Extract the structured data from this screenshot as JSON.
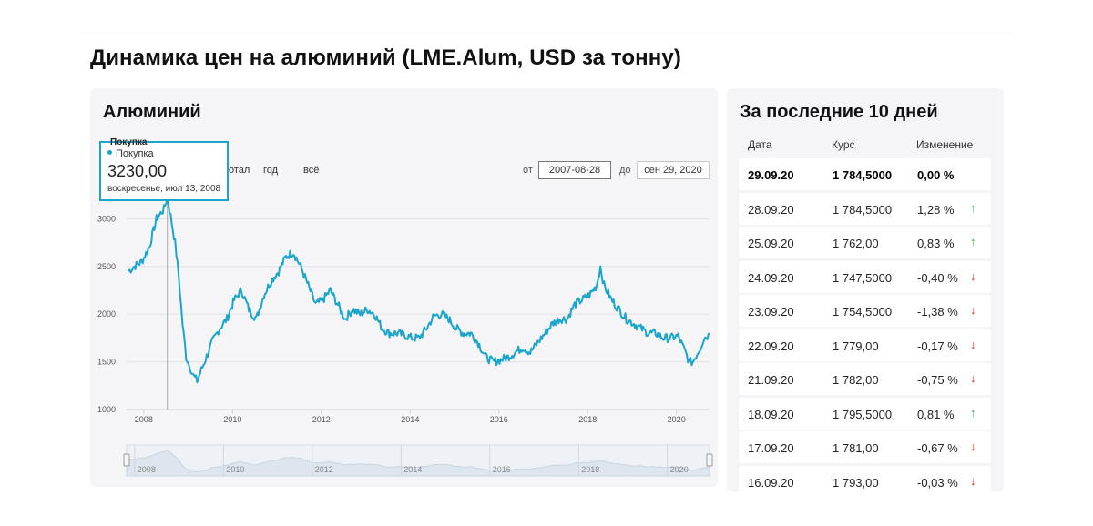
{
  "page_title": "Динамика цен на алюминий (LME.Alum, USD за тонну)",
  "chart_panel": {
    "title": "Алюминий",
    "tooltip": {
      "header": "Покупка",
      "series": "Покупка",
      "value": "3230,00",
      "date": "воскресенье, июл 13, 2008"
    },
    "range_links": [
      "отал",
      "год",
      "всё"
    ],
    "from_label": "от",
    "from_value": "2007-08-28",
    "to_label": "до",
    "to_value": "сен 29, 2020"
  },
  "chart_data": {
    "type": "line",
    "title": "Алюминий",
    "series": [
      {
        "name": "Покупка",
        "color": "#1aa5cc"
      }
    ],
    "ylim": [
      1000,
      3300
    ],
    "yticks": [
      "1000",
      "1500",
      "2000",
      "2500",
      "3000"
    ],
    "xticks": [
      "2008",
      "2010",
      "2012",
      "2014",
      "2016",
      "2018",
      "2020"
    ],
    "navigator_ticks": [
      "2008",
      "2010",
      "2012",
      "2014",
      "2016",
      "2018",
      "2020"
    ],
    "highlight": {
      "x": "2008-07-13",
      "y": 3230
    },
    "x": [
      "2007-08-28",
      "2007-10",
      "2007-12",
      "2008-02",
      "2008-04",
      "2008-06",
      "2008-07-13",
      "2008-09",
      "2008-10",
      "2008-11",
      "2008-12",
      "2009-01",
      "2009-02",
      "2009-03",
      "2009-05",
      "2009-07",
      "2009-09",
      "2009-11",
      "2010-01",
      "2010-03",
      "2010-05",
      "2010-07",
      "2010-09",
      "2010-11",
      "2011-01",
      "2011-03",
      "2011-05",
      "2011-07",
      "2011-09",
      "2011-11",
      "2012-01",
      "2012-03",
      "2012-05",
      "2012-07",
      "2012-09",
      "2012-11",
      "2013-01",
      "2013-03",
      "2013-05",
      "2013-07",
      "2013-09",
      "2013-11",
      "2014-01",
      "2014-03",
      "2014-05",
      "2014-07",
      "2014-09",
      "2014-11",
      "2015-01",
      "2015-03",
      "2015-05",
      "2015-07",
      "2015-09",
      "2015-11",
      "2016-01",
      "2016-03",
      "2016-05",
      "2016-07",
      "2016-09",
      "2016-11",
      "2017-01",
      "2017-03",
      "2017-05",
      "2017-07",
      "2017-09",
      "2017-11",
      "2018-01",
      "2018-03",
      "2018-04",
      "2018-05",
      "2018-07",
      "2018-09",
      "2018-11",
      "2019-01",
      "2019-03",
      "2019-05",
      "2019-07",
      "2019-09",
      "2019-11",
      "2020-01",
      "2020-03",
      "2020-04",
      "2020-05",
      "2020-07",
      "2020-08",
      "2020-09-29"
    ],
    "values": [
      2450,
      2500,
      2550,
      2700,
      3000,
      3100,
      3230,
      2750,
      2400,
      1900,
      1550,
      1450,
      1350,
      1300,
      1500,
      1700,
      1850,
      1950,
      2150,
      2250,
      2050,
      1950,
      2200,
      2350,
      2450,
      2600,
      2650,
      2500,
      2300,
      2100,
      2150,
      2250,
      2100,
      1950,
      2050,
      2000,
      2050,
      2000,
      1850,
      1800,
      1800,
      1780,
      1750,
      1750,
      1850,
      1980,
      2000,
      1950,
      1850,
      1800,
      1800,
      1700,
      1550,
      1500,
      1520,
      1550,
      1600,
      1650,
      1600,
      1700,
      1800,
      1900,
      1950,
      1950,
      2100,
      2150,
      2200,
      2300,
      2500,
      2300,
      2150,
      2050,
      1950,
      1900,
      1850,
      1800,
      1800,
      1750,
      1750,
      1770,
      1600,
      1500,
      1500,
      1650,
      1750,
      1784.5
    ]
  },
  "table_panel": {
    "title": "За последние 10 дней",
    "headers": {
      "date": "Дата",
      "rate": "Курс",
      "change": "Изменение"
    },
    "up_color": "#2db34a",
    "down_color": "#e6281e",
    "rows": [
      {
        "date": "29.09.20",
        "rate": "1 784,5000",
        "change": "0,00 %",
        "dir": "none",
        "arrow": ""
      },
      {
        "date": "28.09.20",
        "rate": "1 784,5000",
        "change": "1,28 %",
        "dir": "up",
        "arrow": "↑"
      },
      {
        "date": "25.09.20",
        "rate": "1 762,00",
        "change": "0,83 %",
        "dir": "up",
        "arrow": "↑"
      },
      {
        "date": "24.09.20",
        "rate": "1 747,5000",
        "change": "-0,40 %",
        "dir": "down",
        "arrow": "↓"
      },
      {
        "date": "23.09.20",
        "rate": "1 754,5000",
        "change": "-1,38 %",
        "dir": "down",
        "arrow": "↓"
      },
      {
        "date": "22.09.20",
        "rate": "1 779,00",
        "change": "-0,17 %",
        "dir": "down",
        "arrow": "↓"
      },
      {
        "date": "21.09.20",
        "rate": "1 782,00",
        "change": "-0,75 %",
        "dir": "down",
        "arrow": "↓"
      },
      {
        "date": "18.09.20",
        "rate": "1 795,5000",
        "change": "0,81 %",
        "dir": "up",
        "arrow": "↑"
      },
      {
        "date": "17.09.20",
        "rate": "1 781,00",
        "change": "-0,67 %",
        "dir": "down",
        "arrow": "↓"
      },
      {
        "date": "16.09.20",
        "rate": "1 793,00",
        "change": "-0,03 %",
        "dir": "down",
        "arrow": "↓"
      }
    ]
  }
}
